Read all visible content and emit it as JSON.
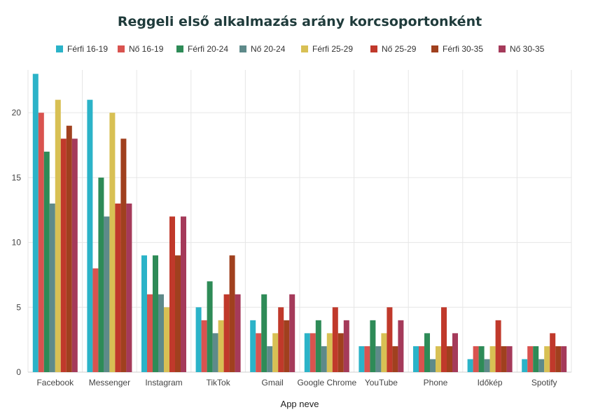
{
  "chart_data": {
    "type": "bar",
    "title": "Reggeli első alkalmazás arány korcsoportonként",
    "xlabel": "App neve",
    "ylabel": "",
    "ylim": [
      0,
      23.3
    ],
    "yticks": [
      0,
      5,
      10,
      15,
      20
    ],
    "grid": true,
    "legend_position": "top",
    "categories": [
      "Facebook",
      "Messenger",
      "Instagram",
      "TikTok",
      "Gmail",
      "Google Chrome",
      "YouTube",
      "Phone",
      "Időkép",
      "Spotify"
    ],
    "series": [
      {
        "name": "Férfi 16-19",
        "color": "#2bb3c8",
        "values": [
          23,
          21,
          9,
          5,
          4,
          3,
          2,
          2,
          1,
          1
        ]
      },
      {
        "name": "Nő 16-19",
        "color": "#d9534f",
        "values": [
          20,
          8,
          6,
          4,
          3,
          3,
          2,
          2,
          2,
          2
        ]
      },
      {
        "name": "Férfi 20-24",
        "color": "#2e8b57",
        "values": [
          17,
          15,
          9,
          7,
          6,
          4,
          4,
          3,
          2,
          2
        ]
      },
      {
        "name": "Nő 20-24",
        "color": "#5e8a8a",
        "values": [
          13,
          12,
          6,
          3,
          2,
          2,
          2,
          1,
          1,
          1
        ]
      },
      {
        "name": "Férfi 25-29",
        "color": "#d8c054",
        "values": [
          21,
          20,
          5,
          4,
          3,
          3,
          3,
          2,
          2,
          2
        ]
      },
      {
        "name": "Nő 25-29",
        "color": "#c0392b",
        "values": [
          18,
          13,
          12,
          6,
          5,
          5,
          5,
          5,
          4,
          3
        ]
      },
      {
        "name": "Férfi 30-35",
        "color": "#a0401e",
        "values": [
          19,
          18,
          9,
          9,
          4,
          3,
          2,
          2,
          2,
          2
        ]
      },
      {
        "name": "Nő 30-35",
        "color": "#a53a5a",
        "values": [
          18,
          13,
          12,
          6,
          6,
          4,
          4,
          3,
          2,
          2
        ]
      }
    ]
  }
}
